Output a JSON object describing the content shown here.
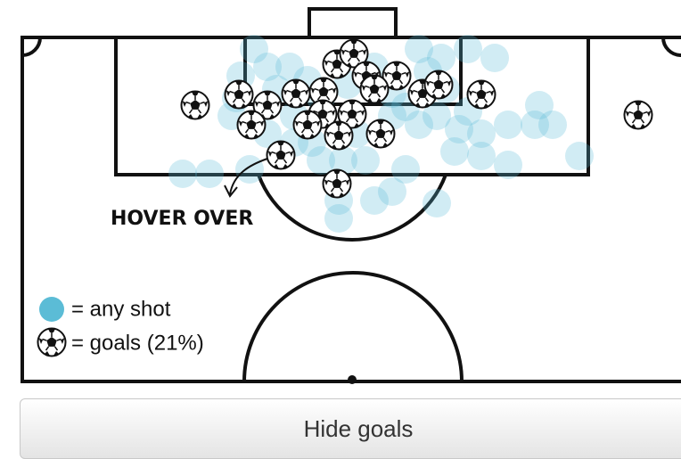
{
  "annotation": "HOVER OVER",
  "legend": {
    "shot": "= any shot",
    "goal": "= goals (21%)"
  },
  "button": "Hide goals"
}
